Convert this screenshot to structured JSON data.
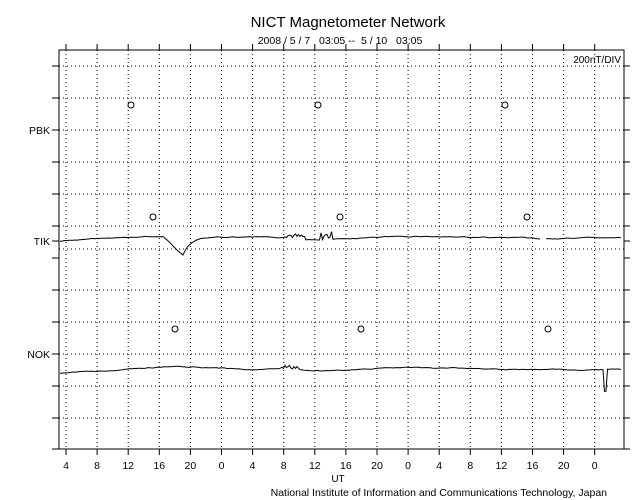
{
  "chart_data": {
    "type": "line",
    "title": "NICT Magnetometer Network",
    "subtitle": "2008 / 5 / 7   03:05 --  5 / 10   03:05",
    "scale_label": "200nT/DIV",
    "xlabel": "UT",
    "x_tick_labels": [
      "4",
      "8",
      "12",
      "16",
      "20",
      "0",
      "4",
      "8",
      "12",
      "16",
      "20",
      "0",
      "4",
      "8",
      "12",
      "16",
      "20",
      "0"
    ],
    "grid": true,
    "series": [
      {
        "name": "PBK",
        "values": [],
        "local_midnight_markers_hours": [
          12.5,
          12.5,
          12.5
        ]
      },
      {
        "name": "TIK",
        "baseline_nT": 0,
        "events": [
          {
            "hour_from_start": 15.5,
            "dip_nT": -130
          },
          {
            "hour_from_start": 34,
            "spike_nT": 60
          }
        ],
        "local_midnight_markers_hours": [
          15.3,
          15.3,
          15.3
        ]
      },
      {
        "name": "NOK",
        "baseline_nT": 0,
        "events": [
          {
            "hour_from_start": 68.5,
            "dip_nT": -150
          }
        ],
        "local_midnight_markers_hours": [
          18.2,
          18.2,
          18.2
        ]
      }
    ]
  },
  "footer": {
    "credit": "National Institute of Information and Communications Technology, Japan"
  }
}
